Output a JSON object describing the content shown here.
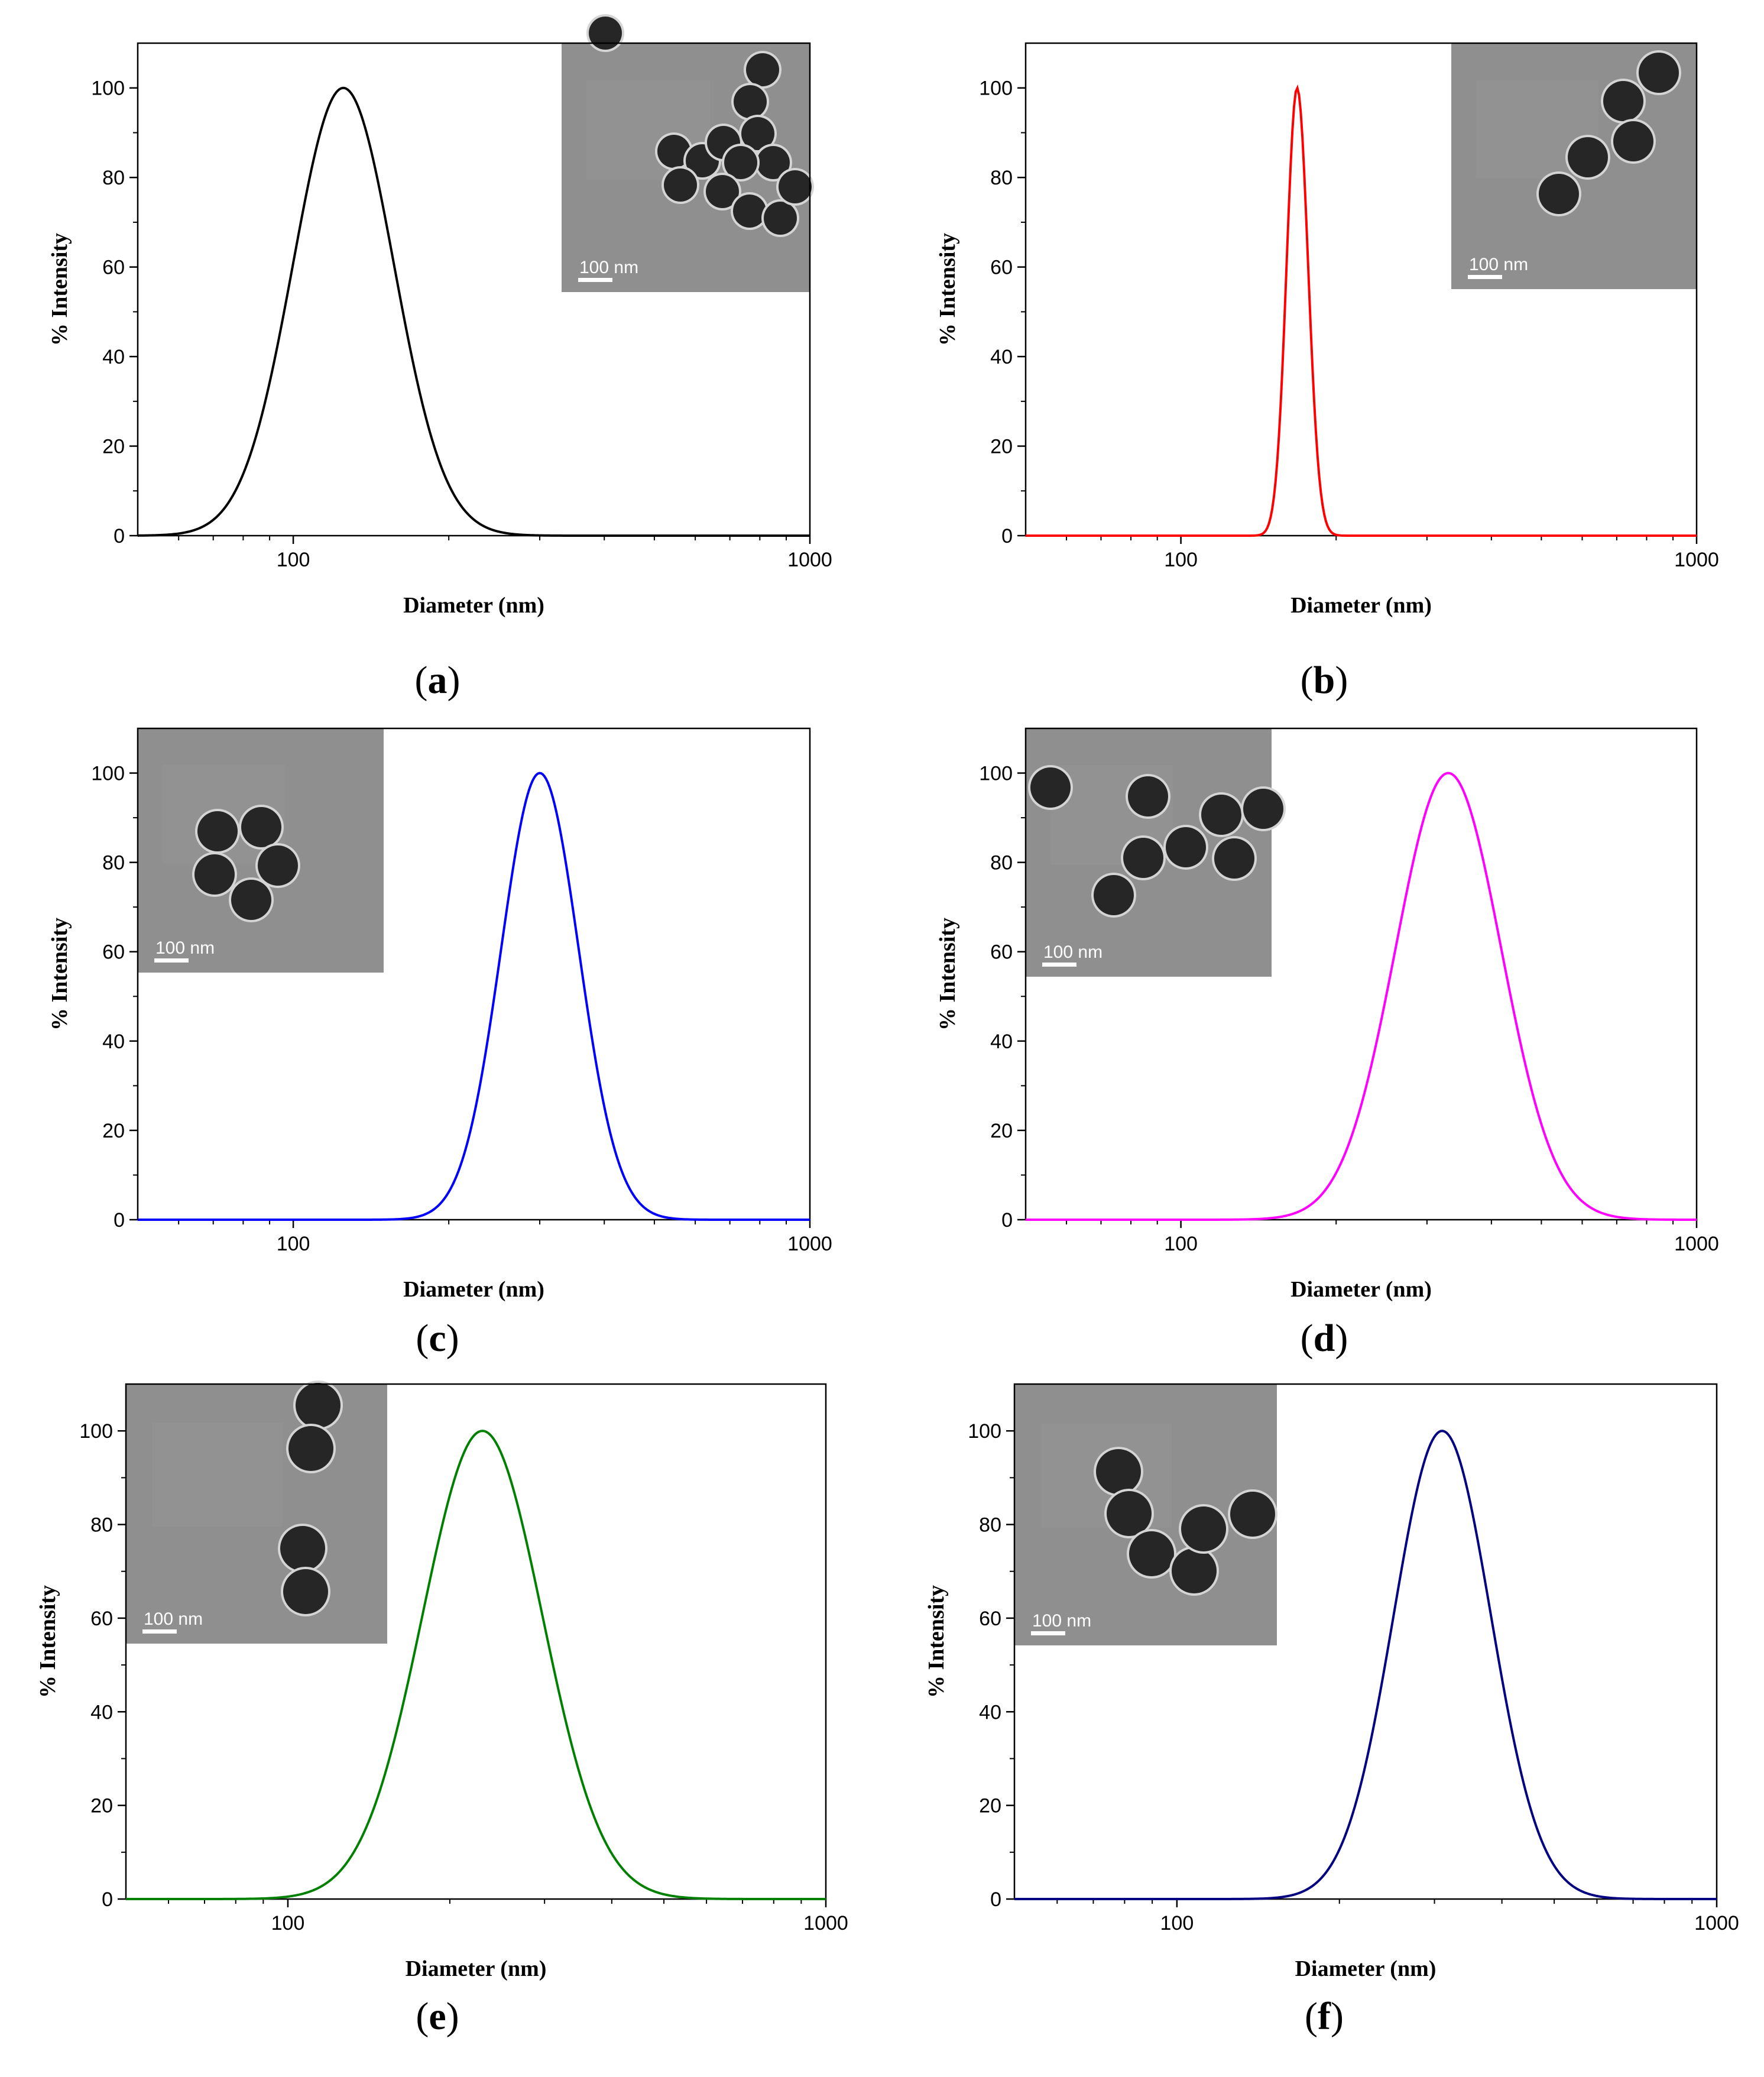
{
  "chart_data": [
    {
      "type": "line",
      "panel": "a",
      "panel_label": "a",
      "xlabel": "Diameter (nm)",
      "ylabel": "% Intensity",
      "xscale": "log",
      "xlim": [
        50,
        1000
      ],
      "ylim": [
        0,
        110
      ],
      "xticks": [
        100,
        1000
      ],
      "xtick_labels": [
        "100",
        "1000"
      ],
      "yticks": [
        0,
        20,
        40,
        60,
        80,
        100
      ],
      "ytick_labels": [
        "0",
        "20",
        "40",
        "60",
        "80",
        "100"
      ],
      "series": [
        {
          "name": "a",
          "color": "#000000",
          "peak_x": 125,
          "peak_y": 100,
          "fwhm_x": [
            96,
            163
          ]
        }
      ],
      "inset": {
        "placement": "top-right",
        "scale_label": "100 nm"
      }
    },
    {
      "type": "line",
      "panel": "b",
      "panel_label": "b",
      "xlabel": "Diameter (nm)",
      "ylabel": "% Intensity",
      "xscale": "log",
      "xlim": [
        50,
        1000
      ],
      "ylim": [
        0,
        110
      ],
      "xticks": [
        100,
        1000
      ],
      "xtick_labels": [
        "100",
        "1000"
      ],
      "yticks": [
        0,
        20,
        40,
        60,
        80,
        100
      ],
      "ytick_labels": [
        "0",
        "20",
        "40",
        "60",
        "80",
        "100"
      ],
      "series": [
        {
          "name": "b",
          "color": "#ff0000",
          "peak_x": 168,
          "peak_y": 100,
          "fwhm_x": [
            159,
            178
          ]
        }
      ],
      "inset": {
        "placement": "top-right",
        "scale_label": "100 nm"
      }
    },
    {
      "type": "line",
      "panel": "c",
      "panel_label": "c",
      "xlabel": "Diameter (nm)",
      "ylabel": "% Intensity",
      "xscale": "log",
      "xlim": [
        50,
        1000
      ],
      "ylim": [
        0,
        110
      ],
      "xticks": [
        100,
        1000
      ],
      "xtick_labels": [
        "100",
        "1000"
      ],
      "yticks": [
        0,
        20,
        40,
        60,
        80,
        100
      ],
      "ytick_labels": [
        "0",
        "20",
        "40",
        "60",
        "80",
        "100"
      ],
      "series": [
        {
          "name": "c",
          "color": "#0000ff",
          "peak_x": 300,
          "peak_y": 100,
          "fwhm_x": [
            245,
            368
          ]
        }
      ],
      "inset": {
        "placement": "top-left",
        "scale_label": "100 nm"
      }
    },
    {
      "type": "line",
      "panel": "d",
      "panel_label": "d",
      "xlabel": "Diameter (nm)",
      "ylabel": "% Intensity",
      "xscale": "log",
      "xlim": [
        50,
        1000
      ],
      "ylim": [
        0,
        110
      ],
      "xticks": [
        100,
        1000
      ],
      "xtick_labels": [
        "100",
        "1000"
      ],
      "yticks": [
        0,
        20,
        40,
        60,
        80,
        100
      ],
      "ytick_labels": [
        "0",
        "20",
        "40",
        "60",
        "80",
        "100"
      ],
      "series": [
        {
          "name": "d",
          "color": "#ff00ff",
          "peak_x": 330,
          "peak_y": 100,
          "fwhm_x": [
            250,
            436
          ]
        }
      ],
      "inset": {
        "placement": "top-left",
        "scale_label": "100 nm"
      }
    },
    {
      "type": "line",
      "panel": "e",
      "panel_label": "e",
      "xlabel": "Diameter (nm)",
      "ylabel": "% Intensity",
      "xscale": "log",
      "xlim": [
        50,
        1000
      ],
      "ylim": [
        0,
        110
      ],
      "xticks": [
        100,
        1000
      ],
      "xtick_labels": [
        "100",
        "1000"
      ],
      "yticks": [
        0,
        20,
        40,
        60,
        80,
        100
      ],
      "ytick_labels": [
        "0",
        "20",
        "40",
        "60",
        "80",
        "100"
      ],
      "series": [
        {
          "name": "e",
          "color": "#008000",
          "peak_x": 230,
          "peak_y": 100,
          "fwhm_x": [
            170,
            311
          ]
        }
      ],
      "inset": {
        "placement": "top-left",
        "scale_label": "100 nm"
      }
    },
    {
      "type": "line",
      "panel": "f",
      "panel_label": "f",
      "xlabel": "Diameter (nm)",
      "ylabel": "% Intensity",
      "xscale": "log",
      "xlim": [
        50,
        1000
      ],
      "ylim": [
        0,
        110
      ],
      "xticks": [
        100,
        1000
      ],
      "xtick_labels": [
        "100",
        "1000"
      ],
      "yticks": [
        0,
        20,
        40,
        60,
        80,
        100
      ],
      "ytick_labels": [
        "0",
        "20",
        "40",
        "60",
        "80",
        "100"
      ],
      "series": [
        {
          "name": "f",
          "color": "#000080",
          "peak_x": 310,
          "peak_y": 100,
          "fwhm_x": [
            243,
            396
          ]
        }
      ],
      "inset": {
        "placement": "top-left",
        "scale_label": "100 nm"
      }
    }
  ]
}
